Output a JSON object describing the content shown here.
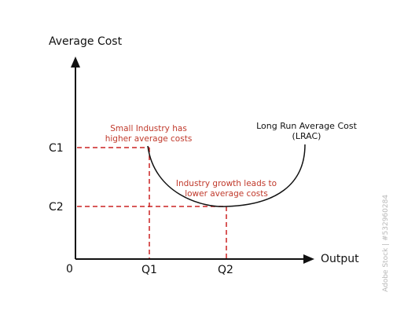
{
  "axes": {
    "y_label": "Average Cost",
    "x_label": "Output",
    "origin_label": "0",
    "y_ticks": [
      "C1",
      "C2"
    ],
    "x_ticks": [
      "Q1",
      "Q2"
    ]
  },
  "curve": {
    "label_line1": "Long Run Average Cost",
    "label_line2": "(LRAC)"
  },
  "annotations": {
    "small_line1": "Small Industry has",
    "small_line2": "higher average costs",
    "growth_line1": "Industry growth leads to",
    "growth_line2": "lower average costs"
  },
  "watermark": {
    "side_text": "Adobe Stock | #532960284"
  },
  "colors": {
    "axis": "#111111",
    "dashed": "#cc2222",
    "annotation": "#c0392b",
    "curve": "#111111"
  }
}
